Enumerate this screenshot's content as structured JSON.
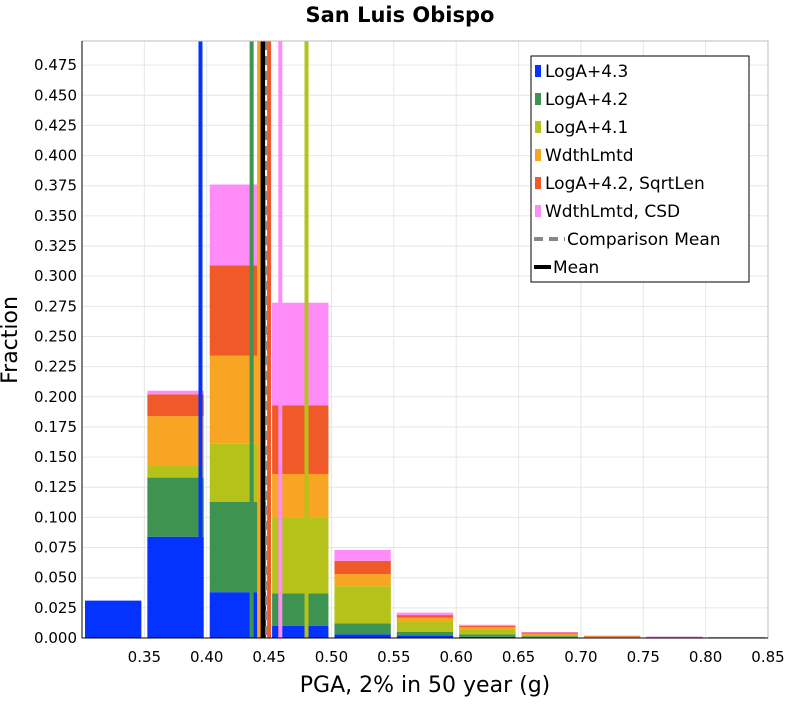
{
  "chart_data": {
    "type": "bar",
    "stacked": true,
    "title": "San Luis Obispo",
    "xlabel": "PGA, 2% in 50 year (g)",
    "ylabel": "Fraction",
    "xlim": [
      0.3,
      0.85
    ],
    "ylim": [
      0,
      0.495
    ],
    "xticks": [
      "0.35",
      "0.40",
      "0.45",
      "0.50",
      "0.55",
      "0.60",
      "0.65",
      "0.70",
      "0.75",
      "0.80",
      "0.85"
    ],
    "yticks": [
      "0.000",
      "0.025",
      "0.050",
      "0.075",
      "0.100",
      "0.125",
      "0.150",
      "0.175",
      "0.200",
      "0.225",
      "0.250",
      "0.275",
      "0.300",
      "0.325",
      "0.350",
      "0.375",
      "0.400",
      "0.425",
      "0.450",
      "0.475"
    ],
    "grid": true,
    "legend_position": "top-right",
    "bins": [
      [
        0.3,
        0.35
      ],
      [
        0.35,
        0.4
      ],
      [
        0.4,
        0.45
      ],
      [
        0.45,
        0.5
      ],
      [
        0.5,
        0.55
      ],
      [
        0.55,
        0.6
      ],
      [
        0.6,
        0.65
      ],
      [
        0.65,
        0.7
      ],
      [
        0.7,
        0.75
      ],
      [
        0.75,
        0.8
      ],
      [
        0.8,
        0.85
      ]
    ],
    "series": [
      {
        "name": "LogA+4.3",
        "color": "#0433ff",
        "values": [
          0.031,
          0.084,
          0.038,
          0.01,
          0.003,
          0.002,
          0.001,
          0.0005,
          0.0003,
          0.0002,
          0.0001
        ]
      },
      {
        "name": "LogA+4.2",
        "color": "#3e9351",
        "values": [
          0.0,
          0.049,
          0.075,
          0.027,
          0.009,
          0.003,
          0.002,
          0.001,
          0.0003,
          0.0002,
          0.0001
        ]
      },
      {
        "name": "LogA+4.1",
        "color": "#b5c219",
        "values": [
          0.0,
          0.01,
          0.048,
          0.063,
          0.031,
          0.009,
          0.004,
          0.001,
          0.0006,
          0.0003,
          0.0004
        ]
      },
      {
        "name": "WdthLmtd",
        "color": "#f7a522",
        "values": [
          0.0,
          0.041,
          0.073,
          0.036,
          0.01,
          0.003,
          0.002,
          0.001,
          0.0003,
          0.0002,
          0.0001
        ]
      },
      {
        "name": "LogA+4.2, SqrtLen",
        "color": "#f05a28",
        "values": [
          0.0,
          0.018,
          0.075,
          0.057,
          0.011,
          0.002,
          0.001,
          0.001,
          0.0002,
          0.0001,
          0.0001
        ]
      },
      {
        "name": "WdthLmtd, CSD",
        "color": "#ff8cf8",
        "values": [
          0.0,
          0.003,
          0.067,
          0.085,
          0.009,
          0.002,
          0.001,
          0.0005,
          0.0003,
          0.0002,
          0.0001
        ]
      }
    ],
    "vertical_lines": [
      {
        "name": "LogA+4.3 mean",
        "x": 0.395,
        "color": "#0433ff"
      },
      {
        "name": "LogA+4.2 mean",
        "x": 0.436,
        "color": "#3e9351"
      },
      {
        "name": "LogA+4.1 mean",
        "x": 0.48,
        "color": "#b5c219"
      },
      {
        "name": "WdthLmtd mean",
        "x": 0.442,
        "color": "#f7a522"
      },
      {
        "name": "LogA+4.2, SqrtLen mean",
        "x": 0.45,
        "color": "#f05a28"
      },
      {
        "name": "WdthLmtd, CSD mean",
        "x": 0.459,
        "color": "#ff8cf8"
      }
    ],
    "comparison_mean": {
      "label": "Comparison Mean",
      "x": 0.447,
      "color": "#888888",
      "style": "dashed"
    },
    "mean": {
      "label": "Mean",
      "x": 0.445,
      "color": "#000000"
    }
  }
}
